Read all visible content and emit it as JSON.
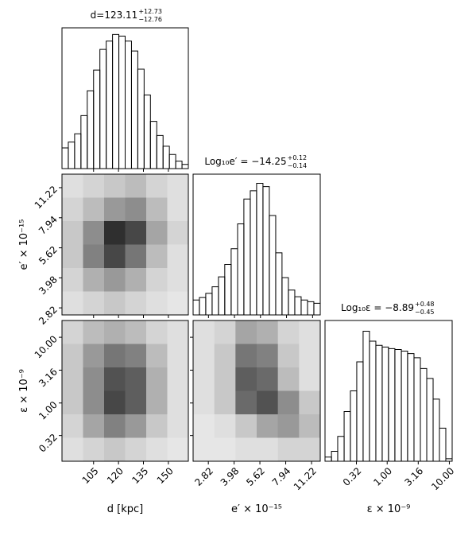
{
  "chart_data": [
    {
      "type": "histogram",
      "title": "d=123.11",
      "title_sup": "+12.73",
      "title_sub": "−12.76",
      "bins": [
        86,
        89.8,
        93.6,
        97.4,
        101.2,
        105,
        108.8,
        112.6,
        116.4,
        120.2,
        124,
        127.8,
        131.6,
        135.4,
        139.2,
        143,
        146.8,
        150.6,
        154.4,
        158.2,
        162
      ],
      "counts": [
        25,
        32,
        42,
        64,
        94,
        119,
        144,
        154,
        162,
        160,
        154,
        142,
        120,
        89,
        57,
        40,
        27,
        17,
        9,
        5
      ],
      "ylim": [
        0,
        170
      ],
      "color": "#000000"
    },
    {
      "type": "histogram",
      "title": "Log₁₀e′ = −14.25",
      "title_sup": "+0.12",
      "title_sub": "−0.14",
      "xscale": "log",
      "bins": [
        2.3,
        2.5,
        2.72,
        2.96,
        3.22,
        3.5,
        3.81,
        4.15,
        4.51,
        4.91,
        5.34,
        5.81,
        6.32,
        6.88,
        7.48,
        8.14,
        8.86,
        9.64,
        10.49,
        11.41,
        12.42
      ],
      "counts": [
        18,
        21,
        26,
        34,
        46,
        61,
        80,
        110,
        140,
        150,
        159,
        155,
        120,
        75,
        45,
        30,
        22,
        18,
        16,
        14
      ],
      "ylim": [
        0,
        170
      ],
      "color": "#000000"
    },
    {
      "type": "histogram",
      "title": "Log₁₀ε = −8.89",
      "title_sup": "+0.48",
      "title_sub": "−0.45",
      "xscale": "log",
      "bins": [
        0.1,
        0.127,
        0.16,
        0.203,
        0.256,
        0.324,
        0.41,
        0.519,
        0.657,
        0.831,
        1.05,
        1.33,
        1.69,
        2.13,
        2.7,
        3.42,
        4.33,
        5.48,
        6.93,
        8.77,
        11.1
      ],
      "counts": [
        5,
        12,
        30,
        60,
        85,
        120,
        157,
        145,
        140,
        138,
        136,
        135,
        133,
        130,
        125,
        112,
        100,
        75,
        40,
        3
      ],
      "ylim": [
        0,
        170
      ],
      "color": "#000000",
      "xlabel": "ε × 10⁻⁹",
      "xticks": [
        0.32,
        {
          "value": 1,
          "label": "1.00"
        },
        3.16,
        {
          "value": 10,
          "label": "10.00"
        }
      ]
    },
    {
      "type": "hist2d",
      "xlim": [
        86,
        162
      ],
      "ylim": [
        2.6,
        13.1
      ],
      "yscale": "log",
      "ylabel": "e′ × 10⁻¹⁵",
      "yticks": [
        2.82,
        3.98,
        5.62,
        7.94,
        11.22
      ],
      "z": [
        [
          0.05,
          0.1,
          0.15,
          0.2,
          0.1,
          0.05
        ],
        [
          0.1,
          0.2,
          0.35,
          0.4,
          0.2,
          0.05
        ],
        [
          0.15,
          0.4,
          0.8,
          0.7,
          0.3,
          0.1
        ],
        [
          0.15,
          0.45,
          0.7,
          0.5,
          0.2,
          0.05
        ],
        [
          0.1,
          0.25,
          0.35,
          0.25,
          0.1,
          0.05
        ],
        [
          0.05,
          0.1,
          0.15,
          0.1,
          0.05,
          0.02
        ]
      ]
    },
    {
      "type": "hist2d",
      "xlim": [
        86,
        162
      ],
      "ylim": [
        0.13,
        18
      ],
      "yscale": "log",
      "xlabel": "d [kpc]",
      "xticks": [
        105,
        120,
        135,
        150
      ],
      "ylabel": "ε × 10⁻⁹",
      "yticks": [
        {
          "value": 10,
          "label": "10.00"
        },
        3.16,
        {
          "value": 1,
          "label": "1.00"
        },
        0.32
      ],
      "z": [
        [
          0.1,
          0.2,
          0.25,
          0.2,
          0.1,
          0.05
        ],
        [
          0.15,
          0.35,
          0.5,
          0.45,
          0.2,
          0.05
        ],
        [
          0.15,
          0.4,
          0.65,
          0.6,
          0.25,
          0.05
        ],
        [
          0.15,
          0.4,
          0.7,
          0.6,
          0.25,
          0.05
        ],
        [
          0.1,
          0.3,
          0.45,
          0.35,
          0.15,
          0.05
        ],
        [
          0.05,
          0.1,
          0.15,
          0.1,
          0.05,
          0.02
        ]
      ]
    },
    {
      "type": "hist2d",
      "xlim": [
        2.3,
        12.6
      ],
      "xscale": "log",
      "ylim": [
        0.13,
        18
      ],
      "yscale": "log",
      "xlabel": "e′ × 10⁻¹⁵",
      "xticks": [
        2.82,
        3.98,
        5.62,
        7.94,
        11.22
      ],
      "z": [
        [
          0.05,
          0.1,
          0.3,
          0.25,
          0.1,
          0.05
        ],
        [
          0.05,
          0.15,
          0.5,
          0.45,
          0.15,
          0.05
        ],
        [
          0.05,
          0.15,
          0.6,
          0.55,
          0.2,
          0.05
        ],
        [
          0.05,
          0.15,
          0.55,
          0.65,
          0.4,
          0.15
        ],
        [
          0.02,
          0.05,
          0.15,
          0.3,
          0.35,
          0.2
        ],
        [
          0.02,
          0.02,
          0.05,
          0.05,
          0.1,
          0.1
        ]
      ]
    }
  ]
}
